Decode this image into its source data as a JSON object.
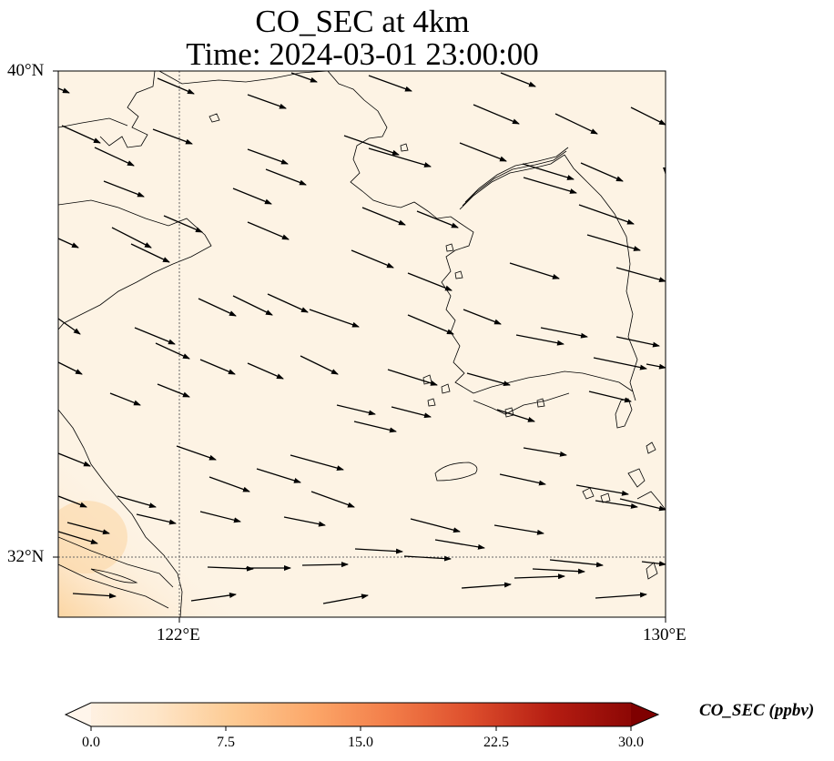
{
  "title": {
    "line1": "CO_SEC at 4km",
    "line2": "Time: 2024-03-01 23:00:00"
  },
  "map": {
    "lon_range": [
      119.5,
      130
    ],
    "lat_range": [
      31,
      40
    ],
    "lat_ticks": [
      {
        "value": 40,
        "label": "40°N"
      },
      {
        "value": 32,
        "label": "32°N"
      }
    ],
    "lon_ticks": [
      {
        "value": 122,
        "label": "122°E"
      },
      {
        "value": 130,
        "label": "130°E"
      }
    ],
    "gridlines": {
      "lat": [
        32
      ],
      "lon": [
        122
      ]
    },
    "coastline_color": "#000000",
    "background_field_color": "#fdf3e4",
    "high_concentration_color": "#fbd9ab",
    "wind_vectors": "arrows pointing mostly east-southeast (westerly/northwesterly flow)"
  },
  "colorbar": {
    "label": "CO_SEC (ppbv)",
    "min": 0.0,
    "max": 30.0,
    "ticks": [
      "0.0",
      "7.5",
      "15.0",
      "22.5",
      "30.0"
    ],
    "extend": "both",
    "colors": [
      "#fff5eb",
      "#fee0b6",
      "#fdbf7f",
      "#f79a5c",
      "#e0643a",
      "#bd2f1c",
      "#a30000",
      "#7f0000"
    ]
  }
}
